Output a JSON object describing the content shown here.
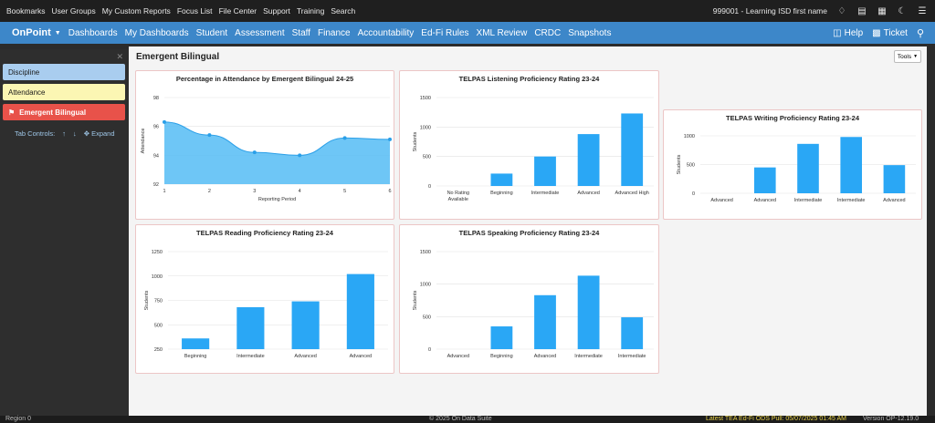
{
  "topbar": {
    "links": [
      "Bookmarks",
      "User Groups",
      "My Custom Reports",
      "Focus List",
      "File Center",
      "Support",
      "Training",
      "Search"
    ],
    "user": "999001 - Learning ISD first name",
    "icons": [
      "bell-icon",
      "printer-icon",
      "print-icon",
      "moon-icon",
      "menu-icon"
    ]
  },
  "navbar": {
    "brand": "OnPoint",
    "items": [
      "Dashboards",
      "My Dashboards",
      "Student",
      "Assessment",
      "Staff",
      "Finance",
      "Accountability",
      "Ed-Fi Rules",
      "XML Review",
      "CRDC",
      "Snapshots"
    ],
    "help": "Help",
    "ticket": "Ticket"
  },
  "sidebar": {
    "items": [
      {
        "label": "Discipline",
        "bg": "#a9cdef",
        "fg": "#1a1a1a"
      },
      {
        "label": "Attendance",
        "bg": "#fbf6b3",
        "fg": "#1a1a1a"
      },
      {
        "label": "Emergent Bilingual",
        "bg": "#e8524a",
        "fg": "#ffffff"
      }
    ],
    "tab_controls_label": "Tab Controls:",
    "expand_label": "Expand"
  },
  "page": {
    "title": "Emergent Bilingual",
    "tools_label": "Tools"
  },
  "colors": {
    "bar": "#2aa7f5",
    "area": "#5ec0f5",
    "line": "#2a9fe8"
  },
  "chart_data": [
    {
      "type": "area",
      "title": "Percentage in Attendance by Emergent Bilingual 24-25",
      "xlabel": "Reporting Period",
      "ylabel": "Attendance",
      "x": [
        1,
        2,
        3,
        4,
        5,
        6
      ],
      "values": [
        96.3,
        95.4,
        94.2,
        94.0,
        95.2,
        95.1
      ],
      "ylim": [
        92,
        98
      ],
      "yticks": [
        92,
        94,
        96,
        98
      ]
    },
    {
      "type": "bar",
      "title": "TELPAS Listening Proficiency Rating 23-24",
      "ylabel": "Students",
      "categories": [
        "No Rating Available",
        "Beginning",
        "Intermediate",
        "Advanced",
        "Advanced High"
      ],
      "values": [
        0,
        210,
        500,
        880,
        1230
      ],
      "ylim": [
        0,
        1500
      ],
      "yticks": [
        0,
        500,
        1000,
        1500
      ]
    },
    {
      "type": "bar",
      "title": "TELPAS Writing Proficiency Rating 23-24",
      "ylabel": "Students",
      "categories": [
        "Advanced",
        "Advanced",
        "Intermediate",
        "Intermediate",
        "Advanced"
      ],
      "values": [
        0,
        450,
        860,
        980,
        490
      ],
      "ylim": [
        0,
        1000
      ],
      "yticks": [
        0,
        500,
        1000
      ]
    },
    {
      "type": "bar",
      "title": "TELPAS Reading Proficiency Rating 23-24",
      "ylabel": "Students",
      "categories": [
        "Beginning",
        "Intermediate",
        "Advanced",
        "Advanced"
      ],
      "values": [
        360,
        680,
        740,
        1020
      ],
      "ylim": [
        250,
        1250
      ],
      "yticks": [
        250,
        500,
        750,
        1000,
        1250
      ]
    },
    {
      "type": "bar",
      "title": "TELPAS Speaking Proficiency Rating 23-24",
      "ylabel": "Students",
      "categories": [
        "Advanced",
        "Beginning",
        "Advanced",
        "Intermediate",
        "Intermediate"
      ],
      "values": [
        0,
        350,
        830,
        1130,
        490
      ],
      "ylim": [
        0,
        1500
      ],
      "yticks": [
        0,
        500,
        1000,
        1500
      ]
    }
  ],
  "footer": {
    "left": "Region 0",
    "center": "© 2025 On Data Suite",
    "pull": "Latest TEA Ed-Fi ODS Pull: 05/07/2025 01:45 AM",
    "version": "Version OP-12.19.0"
  }
}
